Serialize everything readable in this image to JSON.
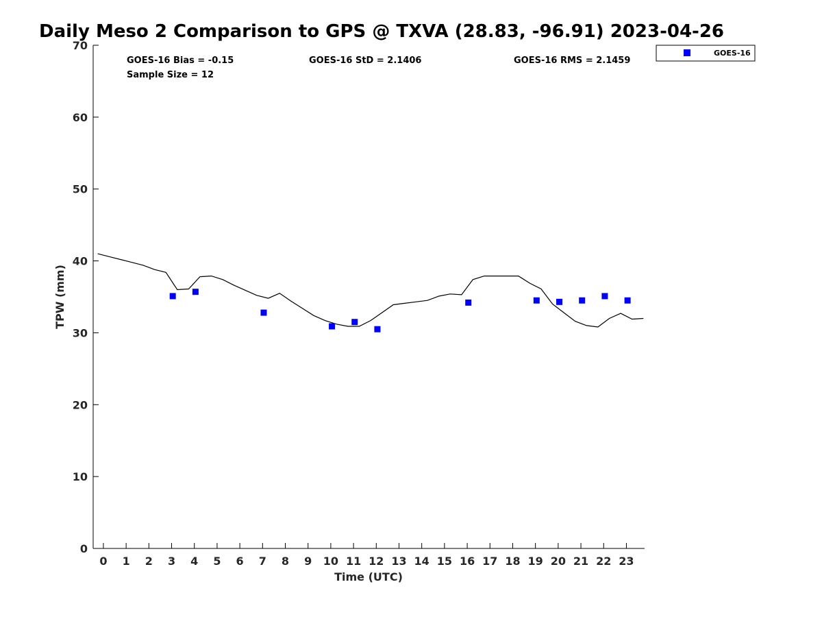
{
  "chart_data": {
    "type": "scatter",
    "title": "Daily Meso 2 Comparison to GPS @ TXVA (28.83, -96.91) 2023-04-26",
    "xlabel": "Time (UTC)",
    "ylabel": "TPW (mm)",
    "xlim": [
      -0.45,
      23.8
    ],
    "ylim": [
      0,
      70
    ],
    "x_ticks": [
      0,
      1,
      2,
      3,
      4,
      5,
      6,
      7,
      8,
      9,
      10,
      11,
      12,
      13,
      14,
      15,
      16,
      17,
      18,
      19,
      20,
      21,
      22,
      23
    ],
    "y_ticks": [
      0,
      10,
      20,
      30,
      40,
      50,
      60,
      70
    ],
    "grid": false,
    "legend_position": "outside-top-right",
    "series": [
      {
        "name": "GOES-16",
        "kind": "scatter",
        "marker": "square",
        "color": "#0000ff",
        "x": [
          3.05,
          4.05,
          7.05,
          10.05,
          11.05,
          12.05,
          16.05,
          19.05,
          20.05,
          21.05,
          22.05,
          23.05
        ],
        "y": [
          35.1,
          35.7,
          32.8,
          30.9,
          31.5,
          30.5,
          34.2,
          34.5,
          34.3,
          34.5,
          35.1,
          34.5
        ]
      },
      {
        "kind": "line",
        "color": "#000000",
        "x": [
          -0.25,
          0.25,
          0.75,
          1.25,
          1.75,
          2.25,
          2.75,
          3.25,
          3.75,
          4.25,
          4.75,
          5.25,
          5.75,
          6.25,
          6.75,
          7.25,
          7.75,
          8.25,
          8.75,
          9.25,
          9.75,
          10.25,
          10.75,
          11.25,
          11.75,
          12.25,
          12.75,
          13.25,
          13.75,
          14.25,
          14.75,
          15.25,
          15.75,
          16.25,
          16.75,
          17.25,
          17.75,
          18.25,
          18.75,
          19.25,
          19.75,
          20.25,
          20.75,
          21.25,
          21.75,
          22.25,
          22.75,
          23.25,
          23.75
        ],
        "y": [
          41.0,
          40.6,
          40.2,
          39.8,
          39.4,
          38.8,
          38.4,
          36.0,
          36.1,
          37.8,
          37.9,
          37.4,
          36.6,
          35.9,
          35.2,
          34.8,
          35.5,
          34.4,
          33.4,
          32.4,
          31.7,
          31.2,
          30.9,
          30.9,
          31.7,
          32.8,
          33.9,
          34.1,
          34.3,
          34.5,
          35.1,
          35.4,
          35.3,
          37.4,
          37.9,
          37.9,
          37.9,
          37.9,
          36.9,
          36.1,
          34.0,
          32.8,
          31.6,
          31.0,
          30.8,
          32.0,
          32.7,
          31.9,
          32.0
        ]
      }
    ],
    "annotations": {
      "bias": "GOES-16 Bias = -0.15",
      "std": "GOES-16 StD = 2.1406",
      "rms": "GOES-16 RMS = 2.1459",
      "sample_size": "Sample Size = 12"
    }
  }
}
